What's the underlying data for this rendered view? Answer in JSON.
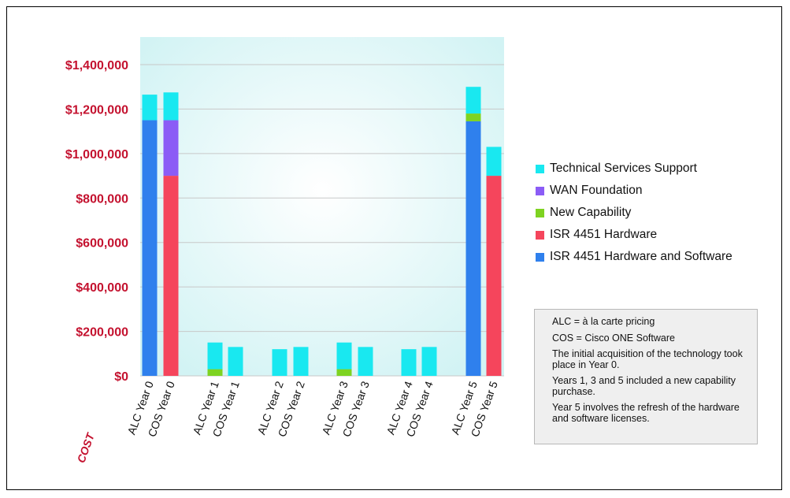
{
  "chart_data": {
    "type": "bar",
    "stacked": true,
    "ylabel": "COST",
    "ylim": [
      0,
      1400000
    ],
    "yticks": [
      0,
      200000,
      400000,
      600000,
      800000,
      1000000,
      1200000,
      1400000
    ],
    "ytick_labels": [
      "$0",
      "$200,000",
      "$400,000",
      "$600,000",
      "$800,000",
      "$1,000,000",
      "$1,200,000",
      "$1,400,000"
    ],
    "grid": true,
    "legend_position": "right",
    "categories": [
      "ALC Year 0",
      "COS Year 0",
      "ALC Year 1",
      "COS Year 1",
      "ALC Year 2",
      "COS Year 2",
      "ALC Year 3",
      "COS Year 3",
      "ALC Year 4",
      "COS Year 4",
      "ALC Year 5",
      "COS Year 5"
    ],
    "series": [
      {
        "name": "ISR 4451 Hardware and Software",
        "color": "#2f80ed",
        "values": [
          1150000,
          0,
          0,
          0,
          0,
          0,
          0,
          0,
          0,
          0,
          1145000,
          0
        ]
      },
      {
        "name": "ISR 4451 Hardware",
        "color": "#f5455c",
        "values": [
          0,
          900000,
          0,
          0,
          0,
          0,
          0,
          0,
          0,
          0,
          0,
          900000
        ]
      },
      {
        "name": "New Capability",
        "color": "#7ed321",
        "values": [
          0,
          0,
          30000,
          0,
          0,
          0,
          30000,
          0,
          0,
          0,
          35000,
          0
        ]
      },
      {
        "name": "WAN Foundation",
        "color": "#8b5cf6",
        "values": [
          0,
          250000,
          0,
          0,
          0,
          0,
          0,
          0,
          0,
          0,
          0,
          0
        ]
      },
      {
        "name": "Technical Services Support",
        "color": "#19e8f0",
        "values": [
          115000,
          125000,
          120000,
          130000,
          120000,
          130000,
          120000,
          130000,
          120000,
          130000,
          120000,
          130000
        ]
      }
    ],
    "legend_order": [
      4,
      3,
      2,
      1,
      0
    ]
  },
  "notes": [
    "ALC = à la carte pricing",
    "COS = Cisco ONE Software",
    "The initial acquisition of the technology took place in Year 0.",
    "Years 1, 3 and 5 included a new capability purchase.",
    "Year 5 involves the refresh of the hardware and software licenses."
  ],
  "colors": {
    "plot_background": "#e3f7f7",
    "tick_label": "#c4122f"
  }
}
